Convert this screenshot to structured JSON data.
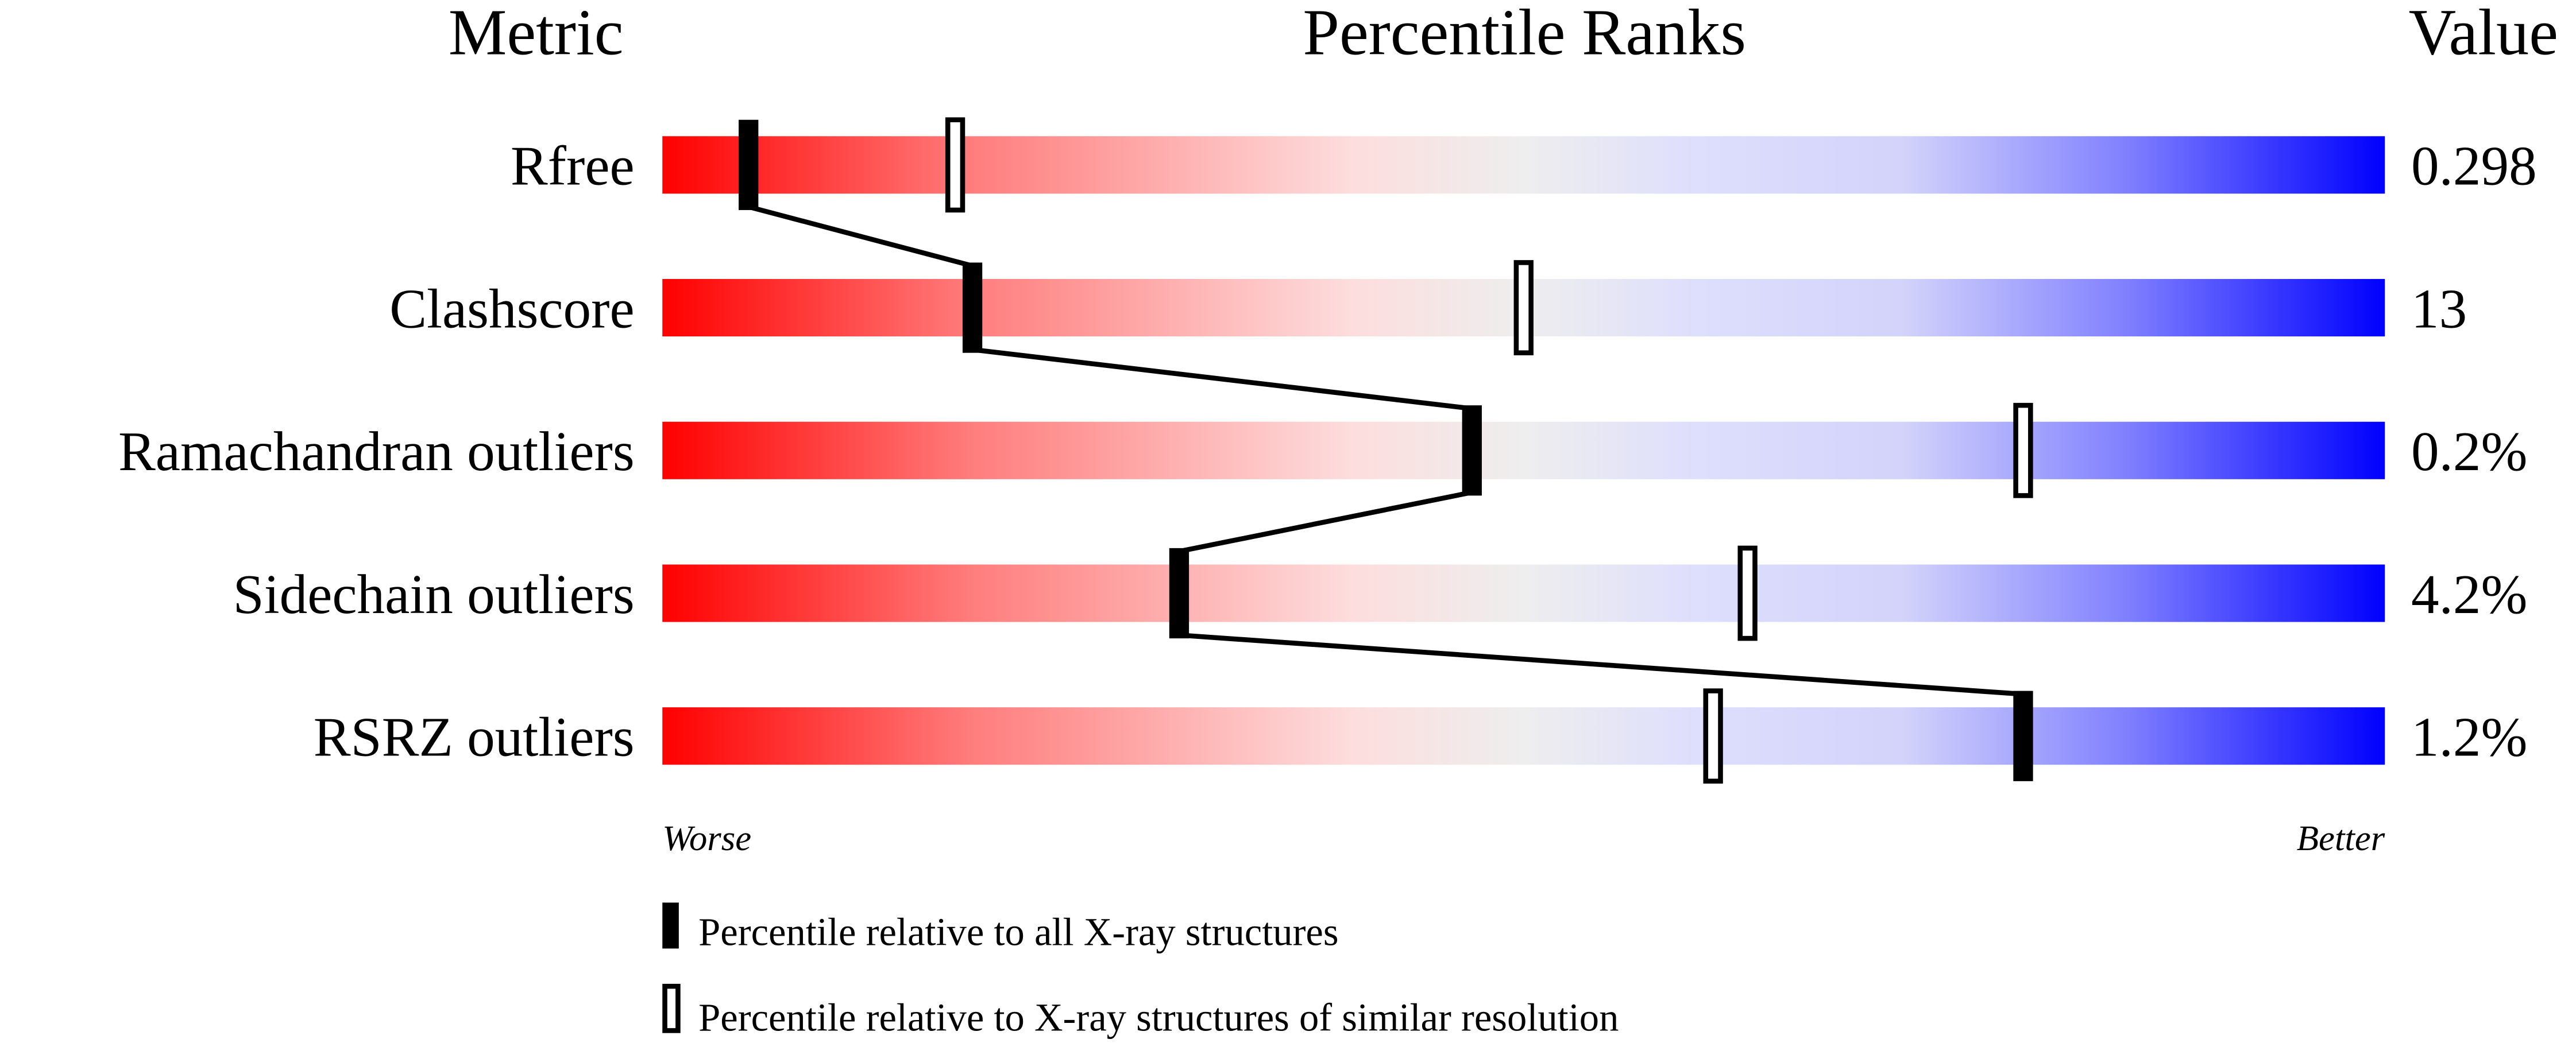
{
  "chart_data": {
    "type": "percentile-slider",
    "headers": {
      "metric": "Metric",
      "ranks": "Percentile Ranks",
      "value": "Value"
    },
    "axis": {
      "left": "Worse",
      "right": "Better",
      "range": [
        0,
        100
      ]
    },
    "gradient_colors": [
      "#ff0000",
      "#fddddd",
      "#eeeeee",
      "#ddddff",
      "#0000ff"
    ],
    "rows": [
      {
        "metric": "Rfree",
        "value": "0.298",
        "percentile_all": 5,
        "percentile_similar": 17
      },
      {
        "metric": "Clashscore",
        "value": "13",
        "percentile_all": 18,
        "percentile_similar": 50
      },
      {
        "metric": "Ramachandran outliers",
        "value": "0.2%",
        "percentile_all": 47,
        "percentile_similar": 79
      },
      {
        "metric": "Sidechain outliers",
        "value": "4.2%",
        "percentile_all": 30,
        "percentile_similar": 63
      },
      {
        "metric": "RSRZ outliers",
        "value": "1.2%",
        "percentile_all": 79,
        "percentile_similar": 61
      }
    ],
    "legend": {
      "all": "Percentile relative to all X-ray structures",
      "similar": "Percentile relative to X-ray structures of similar resolution"
    }
  }
}
